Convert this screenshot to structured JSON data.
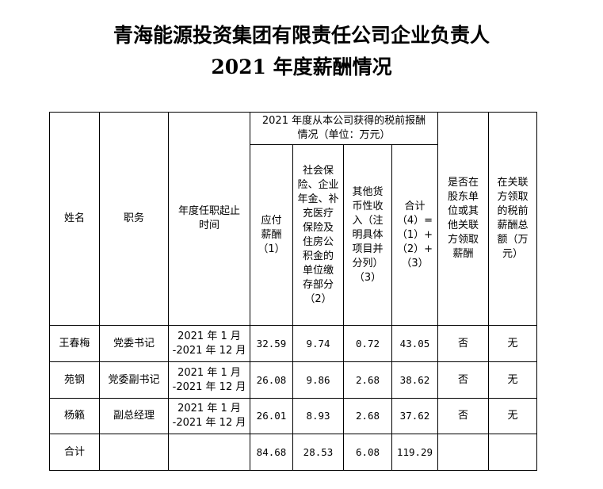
{
  "title": {
    "line1": "青海能源投资集团有限责任公司企业负责人",
    "line2": "2021 年度薪酬情况"
  },
  "table": {
    "headers": {
      "name": "姓名",
      "position": "职务",
      "term": "年度任职起止\n时间",
      "group": "2021 年度从本公司获得的税前报酬\n情况（单位：万元）",
      "salary": "应付\n薪酬\n（1）",
      "insurance": "社会保\n险、企业\n年金、补\n充医疗\n保险及\n住房公\n积金的\n单位缴\n存部分\n（2）",
      "other": "其他货\n币性收\n入（注\n明具体\n项目并\n分列）\n（3）",
      "total": "合计\n（4）=\n（1）+\n（2）+\n（3）",
      "shareholder": "是否在\n股东单\n位或其\n他关联\n方领取\n薪酬",
      "related": "在关联\n方领取\n的税前\n薪酬总\n额（万\n元）"
    },
    "rows": [
      {
        "name": "王春梅",
        "position": "党委书记",
        "term": "2021 年 1 月\n-2021 年 12 月",
        "salary": "32.59",
        "insurance": "9.74",
        "other": "0.72",
        "total": "43.05",
        "shareholder": "否",
        "related": "无"
      },
      {
        "name": "苑钢",
        "position": "党委副书记",
        "term": "2021 年 1 月\n-2021 年 12 月",
        "salary": "26.08",
        "insurance": "9.86",
        "other": "2.68",
        "total": "38.62",
        "shareholder": "否",
        "related": "无"
      },
      {
        "name": "杨籁",
        "position": "副总经理",
        "term": "2021 年 1 月\n-2021 年 12 月",
        "salary": "26.01",
        "insurance": "8.93",
        "other": "2.68",
        "total": "37.62",
        "shareholder": "否",
        "related": "无"
      }
    ],
    "totals": {
      "label": "合计",
      "salary": "84.68",
      "insurance": "28.53",
      "other": "6.08",
      "total": "119.29"
    }
  }
}
